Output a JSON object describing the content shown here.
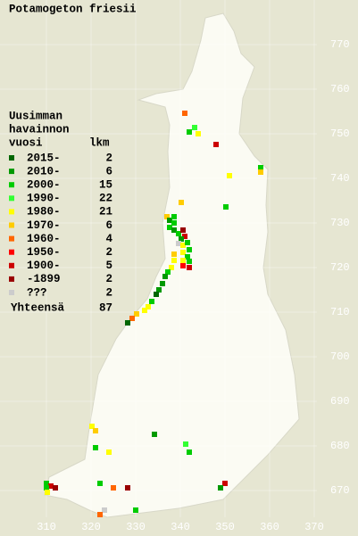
{
  "title": "Potamogeton friesii",
  "legend": {
    "header": [
      "Uusimman",
      "havainnon"
    ],
    "columns": [
      "vuosi",
      "lkm"
    ],
    "items": [
      {
        "label": "2015-",
        "count": 2,
        "color": "#006600"
      },
      {
        "label": "2010-",
        "count": 6,
        "color": "#009900"
      },
      {
        "label": "2000-",
        "count": 15,
        "color": "#00cc00"
      },
      {
        "label": "1990-",
        "count": 22,
        "color": "#33ff33"
      },
      {
        "label": "1980-",
        "count": 21,
        "color": "#ffff00"
      },
      {
        "label": "1970-",
        "count": 6,
        "color": "#ffcc00"
      },
      {
        "label": "1960-",
        "count": 4,
        "color": "#ff6600"
      },
      {
        "label": "1950-",
        "count": 2,
        "color": "#ff0000"
      },
      {
        "label": "1900-",
        "count": 5,
        "color": "#cc0000"
      },
      {
        "label": "-1899",
        "count": 2,
        "color": "#990000"
      },
      {
        "label": "???",
        "count": 2,
        "color": "#cccccc"
      }
    ],
    "total": {
      "label": "Yhteensä",
      "count": 87
    }
  },
  "grid": {
    "x_labels": [
      310,
      320,
      330,
      340,
      350,
      360,
      370
    ],
    "y_labels": [
      770,
      760,
      750,
      740,
      730,
      720,
      710,
      700,
      690,
      680,
      670
    ]
  }
}
